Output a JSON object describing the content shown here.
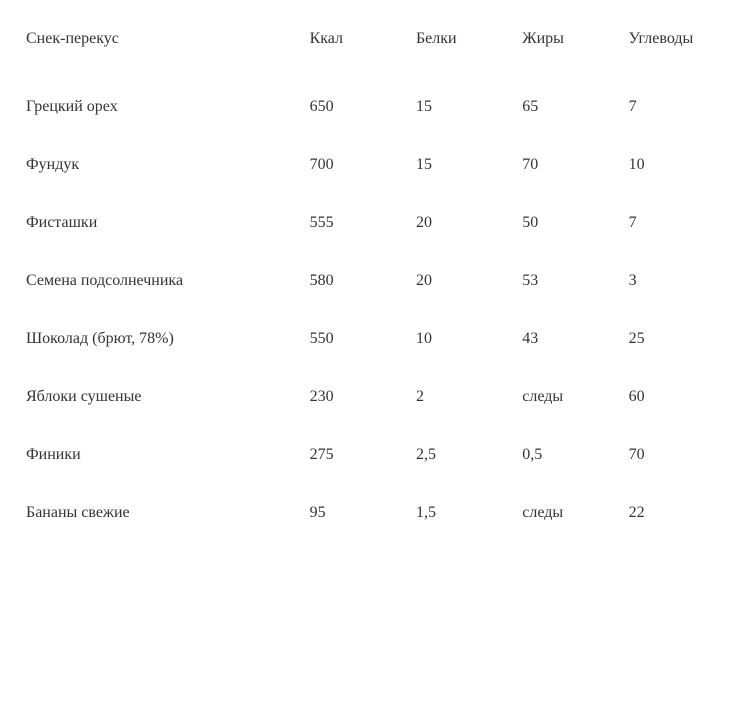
{
  "table": {
    "columns": [
      "Снек-перекус",
      "Ккал",
      "Белки",
      "Жиры",
      "Углеводы"
    ],
    "rows": [
      [
        "Грецкий орех",
        "650",
        "15",
        "65",
        "7"
      ],
      [
        "Фундук",
        "700",
        "15",
        "70",
        "10"
      ],
      [
        "Фисташки",
        "555",
        "20",
        "50",
        "7"
      ],
      [
        "Семена подсолнечника",
        "580",
        "20",
        "53",
        "3"
      ],
      [
        "Шоколад (брют, 78%)",
        "550",
        "10",
        "43",
        "25"
      ],
      [
        "Яблоки сушеные",
        "230",
        "2",
        "следы",
        "60"
      ],
      [
        "Финики",
        "275",
        "2,5",
        "0,5",
        "70"
      ],
      [
        "Бананы свежие",
        "95",
        "1,5",
        "следы",
        "22"
      ]
    ],
    "background_color": "#ffffff",
    "text_color": "#333333",
    "font_family": "Georgia, serif",
    "font_size": 16
  }
}
